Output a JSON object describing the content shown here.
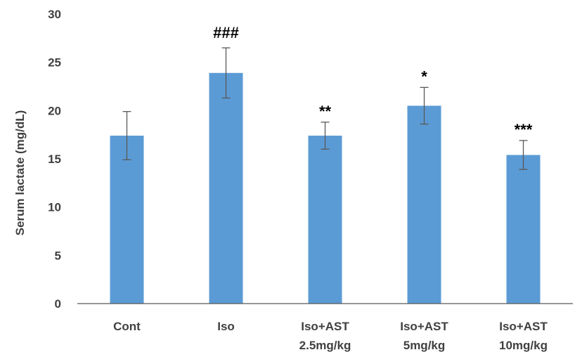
{
  "chart_data": {
    "type": "bar",
    "categories": [
      [
        "Cont"
      ],
      [
        "Iso"
      ],
      [
        "Iso+AST",
        "2.5mg/kg"
      ],
      [
        "Iso+AST",
        "5mg/kg"
      ],
      [
        "Iso+AST",
        "10mg/kg"
      ]
    ],
    "values": [
      17.4,
      23.9,
      17.4,
      20.5,
      15.4
    ],
    "errors": [
      2.5,
      2.6,
      1.4,
      1.9,
      1.5
    ],
    "significance": [
      "",
      "###",
      "**",
      "*",
      "***"
    ],
    "ylabel": "Serum lactate (mg/dL)",
    "xlabel": "",
    "ylim": [
      0,
      30
    ],
    "yticks": [
      0,
      5,
      10,
      15,
      20,
      25,
      30
    ],
    "grid": false,
    "legend": "none",
    "bar_color": "#5b9bd5",
    "error_color": "#595959",
    "axis_color": "#595959"
  }
}
